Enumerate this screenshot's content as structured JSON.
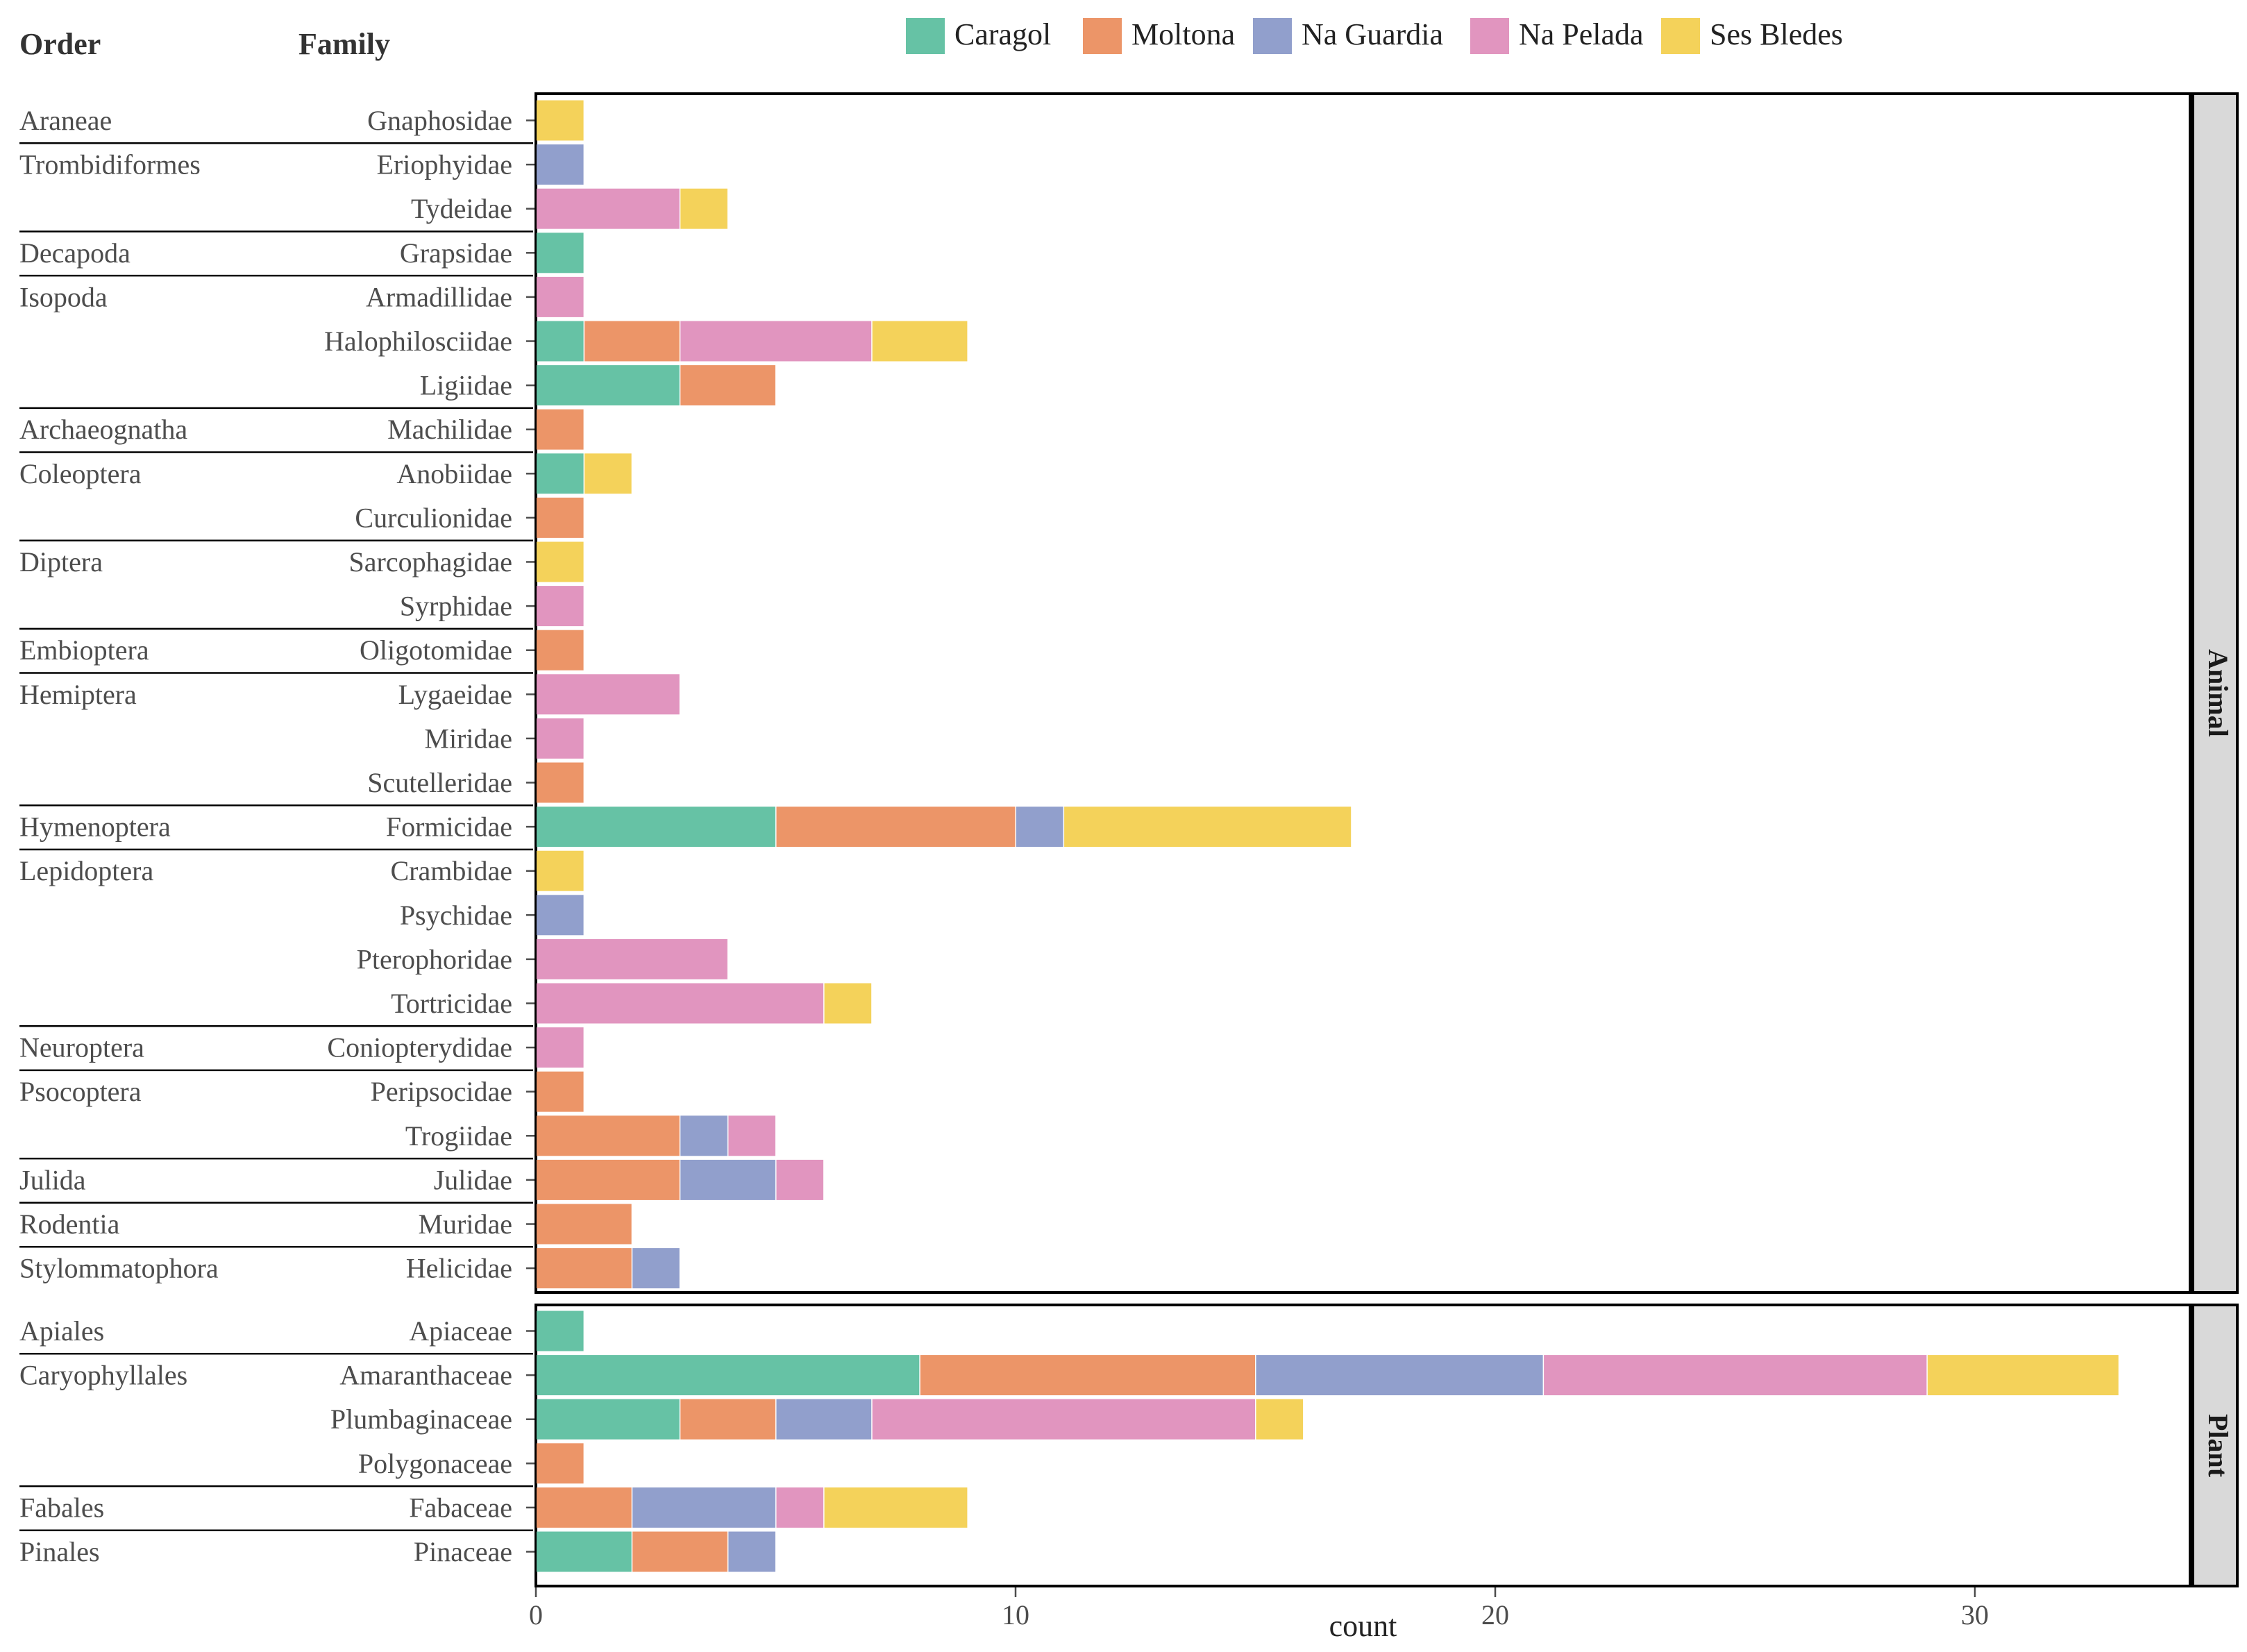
{
  "chart_data": {
    "type": "bar",
    "orientation": "horizontal",
    "stacked": true,
    "xlabel": "count",
    "xlim": [
      0,
      34.5
    ],
    "xticks": [
      0,
      10,
      20,
      30
    ],
    "headers": {
      "order": "Order",
      "family": "Family"
    },
    "series": [
      {
        "name": "Caragol",
        "color": "#66C2A5"
      },
      {
        "name": "Moltona",
        "color": "#EC9568"
      },
      {
        "name": "Na Guardia",
        "color": "#919FCC"
      },
      {
        "name": "Na Pelada",
        "color": "#E195BF"
      },
      {
        "name": "Ses Bledes",
        "color": "#F4D25A"
      }
    ],
    "legend": {
      "position": "top"
    },
    "panels": [
      {
        "name": "Animal",
        "rows": [
          {
            "order": "Araneae",
            "family": "Gnaphosidae",
            "values": [
              0,
              0,
              0,
              0,
              1
            ]
          },
          {
            "order": "Trombidiformes",
            "family": "Eriophyidae",
            "values": [
              0,
              0,
              1,
              0,
              0
            ]
          },
          {
            "order": "",
            "family": "Tydeidae",
            "values": [
              0,
              0,
              0,
              3,
              1
            ]
          },
          {
            "order": "Decapoda",
            "family": "Grapsidae",
            "values": [
              1,
              0,
              0,
              0,
              0
            ]
          },
          {
            "order": "Isopoda",
            "family": "Armadillidae",
            "values": [
              0,
              0,
              0,
              1,
              0
            ]
          },
          {
            "order": "",
            "family": "Halophilosciidae",
            "values": [
              1,
              2,
              0,
              4,
              2
            ]
          },
          {
            "order": "",
            "family": "Ligiidae",
            "values": [
              3,
              2,
              0,
              0,
              0
            ]
          },
          {
            "order": "Archaeognatha",
            "family": "Machilidae",
            "values": [
              0,
              1,
              0,
              0,
              0
            ]
          },
          {
            "order": "Coleoptera",
            "family": "Anobiidae",
            "values": [
              1,
              0,
              0,
              0,
              1
            ]
          },
          {
            "order": "",
            "family": "Curculionidae",
            "values": [
              0,
              1,
              0,
              0,
              0
            ]
          },
          {
            "order": "Diptera",
            "family": "Sarcophagidae",
            "values": [
              0,
              0,
              0,
              0,
              1
            ]
          },
          {
            "order": "",
            "family": "Syrphidae",
            "values": [
              0,
              0,
              0,
              1,
              0
            ]
          },
          {
            "order": "Embioptera",
            "family": "Oligotomidae",
            "values": [
              0,
              1,
              0,
              0,
              0
            ]
          },
          {
            "order": "Hemiptera",
            "family": "Lygaeidae",
            "values": [
              0,
              0,
              0,
              3,
              0
            ]
          },
          {
            "order": "",
            "family": "Miridae",
            "values": [
              0,
              0,
              0,
              1,
              0
            ]
          },
          {
            "order": "",
            "family": "Scutelleridae",
            "values": [
              0,
              1,
              0,
              0,
              0
            ]
          },
          {
            "order": "Hymenoptera",
            "family": "Formicidae",
            "values": [
              5,
              5,
              1,
              0,
              6
            ]
          },
          {
            "order": "Lepidoptera",
            "family": "Crambidae",
            "values": [
              0,
              0,
              0,
              0,
              1
            ]
          },
          {
            "order": "",
            "family": "Psychidae",
            "values": [
              0,
              0,
              1,
              0,
              0
            ]
          },
          {
            "order": "",
            "family": "Pterophoridae",
            "values": [
              0,
              0,
              0,
              4,
              0
            ]
          },
          {
            "order": "",
            "family": "Tortricidae",
            "values": [
              0,
              0,
              0,
              6,
              1
            ]
          },
          {
            "order": "Neuroptera",
            "family": "Coniopterydidae",
            "values": [
              0,
              0,
              0,
              1,
              0
            ]
          },
          {
            "order": "Psocoptera",
            "family": "Peripsocidae",
            "values": [
              0,
              1,
              0,
              0,
              0
            ]
          },
          {
            "order": "",
            "family": "Trogiidae",
            "values": [
              0,
              3,
              1,
              1,
              0
            ]
          },
          {
            "order": "Julida",
            "family": "Julidae",
            "values": [
              0,
              3,
              2,
              1,
              0
            ]
          },
          {
            "order": "Rodentia",
            "family": "Muridae",
            "values": [
              0,
              2,
              0,
              0,
              0
            ]
          },
          {
            "order": "Stylommatophora",
            "family": "Helicidae",
            "values": [
              0,
              2,
              1,
              0,
              0
            ]
          }
        ]
      },
      {
        "name": "Plant",
        "rows": [
          {
            "order": "Apiales",
            "family": "Apiaceae",
            "values": [
              1,
              0,
              0,
              0,
              0
            ]
          },
          {
            "order": "Caryophyllales",
            "family": "Amaranthaceae",
            "values": [
              8,
              7,
              6,
              8,
              4
            ]
          },
          {
            "order": "",
            "family": "Plumbaginaceae",
            "values": [
              3,
              2,
              2,
              8,
              1
            ]
          },
          {
            "order": "",
            "family": "Polygonaceae",
            "values": [
              0,
              1,
              0,
              0,
              0
            ]
          },
          {
            "order": "Fabales",
            "family": "Fabaceae",
            "values": [
              0,
              2,
              3,
              1,
              3
            ]
          },
          {
            "order": "Pinales",
            "family": "Pinaceae",
            "values": [
              2,
              2,
              1,
              0,
              0
            ]
          }
        ]
      }
    ]
  }
}
